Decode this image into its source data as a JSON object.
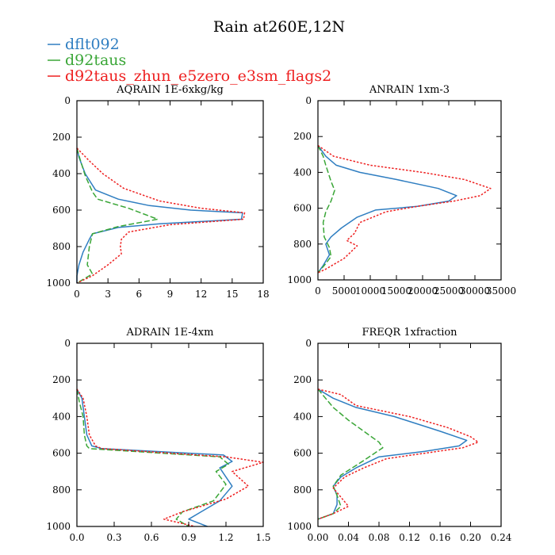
{
  "figure_title": "Rain at260E,12N",
  "legend": [
    {
      "label": "dflt092",
      "color": "#2f7ec1",
      "dash": "solid"
    },
    {
      "label": "d92taus",
      "color": "#3aa637",
      "dash": "dashed"
    },
    {
      "label": "d92taus_zhun_e5zero_e3sm_flags2",
      "color": "#ee2020",
      "dash": "dotted"
    }
  ],
  "chart_data": [
    {
      "type": "line",
      "title": "AQRAIN  1E-6xkg/kg",
      "xlim": [
        0,
        18
      ],
      "ylim": [
        1000,
        0
      ],
      "xticks": [
        "0",
        "3",
        "6",
        "9",
        "12",
        "15",
        "18"
      ],
      "xtick_values": [
        0,
        3,
        6,
        9,
        12,
        15,
        18
      ],
      "yticks": [
        "0",
        "200",
        "400",
        "600",
        "800",
        "1000"
      ],
      "ytick_values": [
        0,
        200,
        400,
        600,
        800,
        1000
      ],
      "series": [
        {
          "name": "dflt092",
          "points": [
            [
              0.0,
              260
            ],
            [
              0.2,
              310
            ],
            [
              0.8,
              400
            ],
            [
              1.8,
              490
            ],
            [
              4.0,
              540
            ],
            [
              7.0,
              575
            ],
            [
              11.0,
              600
            ],
            [
              16.0,
              615
            ],
            [
              15.9,
              650
            ],
            [
              8.0,
              675
            ],
            [
              4.0,
              695
            ],
            [
              1.5,
              730
            ],
            [
              1.2,
              760
            ],
            [
              0.6,
              830
            ],
            [
              0.2,
              900
            ],
            [
              0.0,
              960
            ],
            [
              0.0,
              1000
            ]
          ]
        },
        {
          "name": "d92taus",
          "points": [
            [
              0.0,
              260
            ],
            [
              0.3,
              320
            ],
            [
              0.8,
              410
            ],
            [
              1.5,
              500
            ],
            [
              2.0,
              540
            ],
            [
              5.0,
              590
            ],
            [
              7.8,
              650
            ],
            [
              4.0,
              690
            ],
            [
              1.5,
              730
            ],
            [
              1.2,
              800
            ],
            [
              1.0,
              900
            ],
            [
              1.5,
              950
            ],
            [
              0.0,
              1000
            ]
          ]
        },
        {
          "name": "d92taus_zhun_e5zero_e3sm_flags2",
          "points": [
            [
              0.0,
              260
            ],
            [
              1.2,
              330
            ],
            [
              2.5,
              400
            ],
            [
              4.5,
              480
            ],
            [
              8.0,
              550
            ],
            [
              12.0,
              590
            ],
            [
              16.2,
              615
            ],
            [
              16.1,
              650
            ],
            [
              9.0,
              680
            ],
            [
              5.0,
              720
            ],
            [
              4.3,
              760
            ],
            [
              4.2,
              800
            ],
            [
              4.3,
              840
            ],
            [
              3.0,
              900
            ],
            [
              1.5,
              960
            ],
            [
              0.0,
              1000
            ]
          ]
        }
      ]
    },
    {
      "type": "line",
      "title": "ANRAIN  1xm-3",
      "xlim": [
        0,
        35000
      ],
      "ylim": [
        1000,
        0
      ],
      "xticks": [
        "0",
        "5000",
        "10000",
        "15000",
        "20000",
        "25000",
        "30000",
        "35000"
      ],
      "xtick_values": [
        0,
        5000,
        10000,
        15000,
        20000,
        25000,
        30000,
        35000
      ],
      "yticks": [
        "0",
        "200",
        "400",
        "600",
        "800",
        "1000"
      ],
      "ytick_values": [
        0,
        200,
        400,
        600,
        800,
        1000
      ],
      "series": [
        {
          "name": "dflt092",
          "points": [
            [
              0,
              250
            ],
            [
              1500,
              310
            ],
            [
              3500,
              360
            ],
            [
              8000,
              400
            ],
            [
              15000,
              440
            ],
            [
              23000,
              490
            ],
            [
              26500,
              530
            ],
            [
              25000,
              560
            ],
            [
              19000,
              590
            ],
            [
              11000,
              610
            ],
            [
              7500,
              650
            ],
            [
              4500,
              710
            ],
            [
              2500,
              760
            ],
            [
              1500,
              800
            ],
            [
              2200,
              860
            ],
            [
              1000,
              920
            ],
            [
              0,
              960
            ]
          ]
        },
        {
          "name": "d92taus",
          "points": [
            [
              0,
              250
            ],
            [
              1000,
              310
            ],
            [
              1500,
              360
            ],
            [
              2500,
              450
            ],
            [
              3200,
              500
            ],
            [
              2500,
              560
            ],
            [
              1500,
              620
            ],
            [
              1000,
              680
            ],
            [
              1200,
              760
            ],
            [
              2200,
              820
            ],
            [
              2500,
              870
            ],
            [
              1200,
              920
            ],
            [
              0,
              960
            ]
          ]
        },
        {
          "name": "d92taus_zhun_e5zero_e3sm_flags2",
          "points": [
            [
              0,
              250
            ],
            [
              3000,
              310
            ],
            [
              10000,
              360
            ],
            [
              20000,
              400
            ],
            [
              28000,
              440
            ],
            [
              33000,
              490
            ],
            [
              31000,
              530
            ],
            [
              26000,
              560
            ],
            [
              19000,
              590
            ],
            [
              13000,
              620
            ],
            [
              8000,
              680
            ],
            [
              7000,
              740
            ],
            [
              5500,
              780
            ],
            [
              7500,
              810
            ],
            [
              5000,
              880
            ],
            [
              1500,
              940
            ],
            [
              0,
              960
            ]
          ]
        }
      ]
    },
    {
      "type": "line",
      "title": "ADRAIN  1E-4xm",
      "xlim": [
        0,
        1.5
      ],
      "ylim": [
        1000,
        0
      ],
      "xticks": [
        "0.0",
        "0.3",
        "0.6",
        "0.9",
        "1.2",
        "1.5"
      ],
      "xtick_values": [
        0,
        0.3,
        0.6,
        0.9,
        1.2,
        1.5
      ],
      "yticks": [
        "0",
        "200",
        "400",
        "600",
        "800",
        "1000"
      ],
      "ytick_values": [
        0,
        200,
        400,
        600,
        800,
        1000
      ],
      "series": [
        {
          "name": "dflt092",
          "points": [
            [
              0.0,
              250
            ],
            [
              0.04,
              300
            ],
            [
              0.06,
              400
            ],
            [
              0.08,
              500
            ],
            [
              0.12,
              560
            ],
            [
              0.2,
              575
            ],
            [
              1.18,
              610
            ],
            [
              1.25,
              645
            ],
            [
              1.15,
              680
            ],
            [
              1.25,
              780
            ],
            [
              1.15,
              860
            ],
            [
              1.0,
              920
            ],
            [
              0.9,
              960
            ],
            [
              1.05,
              1000
            ]
          ]
        },
        {
          "name": "d92taus",
          "points": [
            [
              0.0,
              250
            ],
            [
              0.02,
              320
            ],
            [
              0.05,
              400
            ],
            [
              0.06,
              500
            ],
            [
              0.08,
              560
            ],
            [
              0.1,
              575
            ],
            [
              1.15,
              620
            ],
            [
              1.22,
              660
            ],
            [
              1.12,
              700
            ],
            [
              1.2,
              770
            ],
            [
              1.1,
              860
            ],
            [
              0.85,
              920
            ],
            [
              0.8,
              960
            ],
            [
              0.9,
              1000
            ]
          ]
        },
        {
          "name": "d92taus_zhun_e5zero_e3sm_flags2",
          "points": [
            [
              0.0,
              250
            ],
            [
              0.05,
              300
            ],
            [
              0.08,
              400
            ],
            [
              0.1,
              500
            ],
            [
              0.15,
              560
            ],
            [
              0.2,
              575
            ],
            [
              1.2,
              620
            ],
            [
              1.5,
              650
            ],
            [
              1.25,
              700
            ],
            [
              1.38,
              780
            ],
            [
              1.2,
              850
            ],
            [
              0.85,
              920
            ],
            [
              0.7,
              960
            ],
            [
              0.95,
              1000
            ]
          ]
        }
      ]
    },
    {
      "type": "line",
      "title": "FREQR  1xfraction",
      "xlim": [
        0,
        0.24
      ],
      "ylim": [
        1000,
        0
      ],
      "xticks": [
        "0.00",
        "0.04",
        "0.08",
        "0.12",
        "0.16",
        "0.20",
        "0.24"
      ],
      "xtick_values": [
        0,
        0.04,
        0.08,
        0.12,
        0.16,
        0.2,
        0.24
      ],
      "yticks": [
        "0",
        "200",
        "400",
        "600",
        "800",
        "1000"
      ],
      "ytick_values": [
        0,
        200,
        400,
        600,
        800,
        1000
      ],
      "series": [
        {
          "name": "dflt092",
          "points": [
            [
              0.0,
              250
            ],
            [
              0.02,
              300
            ],
            [
              0.05,
              350
            ],
            [
              0.1,
              400
            ],
            [
              0.16,
              480
            ],
            [
              0.195,
              530
            ],
            [
              0.185,
              560
            ],
            [
              0.14,
              590
            ],
            [
              0.08,
              620
            ],
            [
              0.05,
              680
            ],
            [
              0.03,
              730
            ],
            [
              0.02,
              780
            ],
            [
              0.025,
              830
            ],
            [
              0.025,
              880
            ],
            [
              0.02,
              930
            ],
            [
              0.0,
              960
            ]
          ]
        },
        {
          "name": "d92taus",
          "points": [
            [
              0.0,
              250
            ],
            [
              0.01,
              300
            ],
            [
              0.02,
              350
            ],
            [
              0.04,
              420
            ],
            [
              0.06,
              480
            ],
            [
              0.08,
              540
            ],
            [
              0.085,
              570
            ],
            [
              0.06,
              640
            ],
            [
              0.03,
              720
            ],
            [
              0.02,
              780
            ],
            [
              0.025,
              830
            ],
            [
              0.03,
              890
            ],
            [
              0.02,
              930
            ],
            [
              0.0,
              960
            ]
          ]
        },
        {
          "name": "d92taus_zhun_e5zero_e3sm_flags2",
          "points": [
            [
              0.0,
              250
            ],
            [
              0.03,
              280
            ],
            [
              0.05,
              340
            ],
            [
              0.12,
              400
            ],
            [
              0.17,
              460
            ],
            [
              0.2,
              510
            ],
            [
              0.21,
              540
            ],
            [
              0.19,
              570
            ],
            [
              0.14,
              600
            ],
            [
              0.09,
              630
            ],
            [
              0.06,
              680
            ],
            [
              0.035,
              730
            ],
            [
              0.02,
              790
            ],
            [
              0.03,
              840
            ],
            [
              0.04,
              890
            ],
            [
              0.02,
              930
            ],
            [
              0.0,
              960
            ]
          ]
        }
      ]
    }
  ]
}
